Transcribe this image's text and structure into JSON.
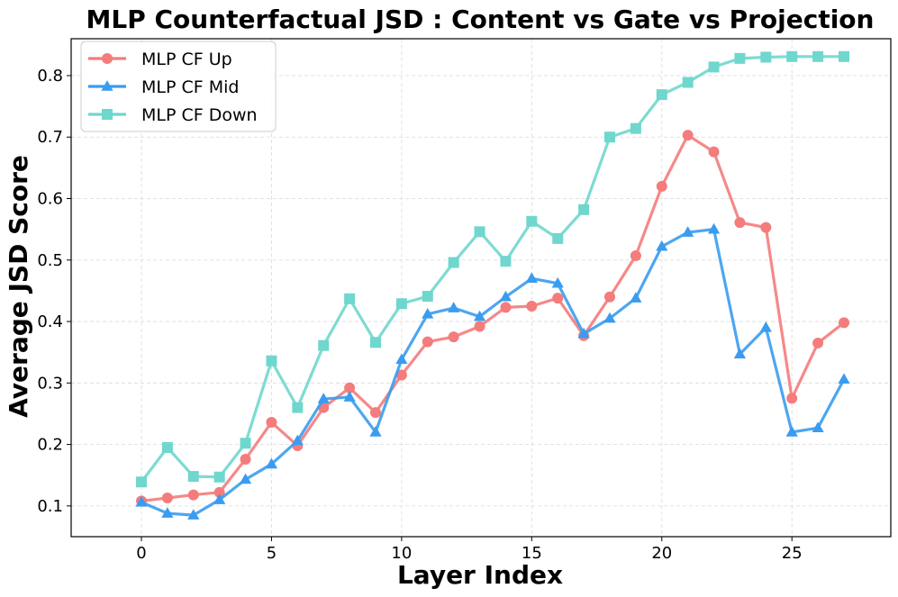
{
  "chart_data": {
    "type": "line",
    "title": "MLP Counterfactual JSD : Content vs Gate vs Projection",
    "xlabel": "Layer Index",
    "ylabel": "Average JSD Score",
    "xlim": [
      -2.7,
      28.8
    ],
    "ylim": [
      0.05,
      0.86
    ],
    "xticks": [
      0,
      5,
      10,
      15,
      20,
      25
    ],
    "yticks": [
      0.1,
      0.2,
      0.3,
      0.4,
      0.5,
      0.6,
      0.7,
      0.8
    ],
    "xtick_labels": [
      "0",
      "5",
      "10",
      "15",
      "20",
      "25"
    ],
    "ytick_labels": [
      "0.1",
      "0.2",
      "0.3",
      "0.4",
      "0.5",
      "0.6",
      "0.7",
      "0.8"
    ],
    "grid": true,
    "legend_position": "top-left",
    "x": [
      0,
      1,
      2,
      3,
      4,
      5,
      6,
      7,
      8,
      9,
      10,
      11,
      12,
      13,
      14,
      15,
      16,
      17,
      18,
      19,
      20,
      21,
      22,
      23,
      24,
      25,
      26,
      27
    ],
    "series": [
      {
        "name": "MLP CF Up",
        "color": "#f47c7c",
        "marker": "circle",
        "values": [
          0.108,
          0.113,
          0.118,
          0.122,
          0.176,
          0.236,
          0.198,
          0.26,
          0.292,
          0.252,
          0.313,
          0.367,
          0.375,
          0.392,
          0.423,
          0.425,
          0.438,
          0.377,
          0.44,
          0.507,
          0.62,
          0.703,
          0.676,
          0.561,
          0.553,
          0.275,
          0.365,
          0.398
        ]
      },
      {
        "name": "MLP CF Mid",
        "color": "#3a9cf0",
        "marker": "triangle",
        "values": [
          0.106,
          0.088,
          0.085,
          0.11,
          0.143,
          0.168,
          0.206,
          0.274,
          0.277,
          0.22,
          0.338,
          0.412,
          0.422,
          0.408,
          0.44,
          0.47,
          0.462,
          0.38,
          0.405,
          0.438,
          0.522,
          0.545,
          0.55,
          0.347,
          0.39,
          0.22,
          0.227,
          0.306
        ]
      },
      {
        "name": "MLP CF Down",
        "color": "#6fd7cd",
        "marker": "square",
        "values": [
          0.139,
          0.195,
          0.148,
          0.147,
          0.202,
          0.336,
          0.26,
          0.361,
          0.437,
          0.366,
          0.429,
          0.441,
          0.496,
          0.546,
          0.498,
          0.563,
          0.535,
          0.582,
          0.7,
          0.714,
          0.769,
          0.789,
          0.814,
          0.828,
          0.83,
          0.831,
          0.831,
          0.831
        ]
      }
    ]
  }
}
